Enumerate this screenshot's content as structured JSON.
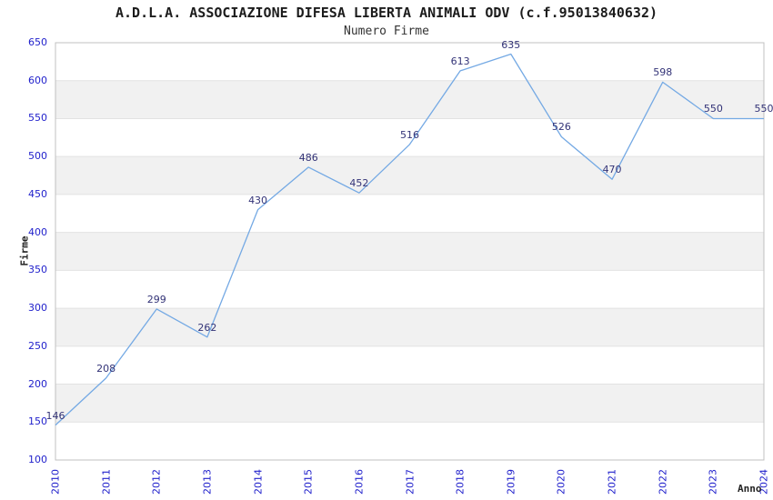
{
  "header": {
    "title": "A.D.L.A. ASSOCIAZIONE DIFESA LIBERTA ANIMALI ODV (c.f.95013840632)",
    "subtitle": "Numero Firme"
  },
  "chart_data": {
    "type": "line",
    "title": "A.D.L.A. ASSOCIAZIONE DIFESA LIBERTA ANIMALI ODV (c.f.95013840632)",
    "subtitle": "Numero Firme",
    "xlabel": "Anno",
    "ylabel": "Firme",
    "x": [
      2010,
      2011,
      2012,
      2013,
      2014,
      2015,
      2016,
      2017,
      2018,
      2019,
      2020,
      2021,
      2022,
      2023,
      2024
    ],
    "values": [
      146,
      208,
      299,
      262,
      430,
      486,
      452,
      516,
      613,
      635,
      526,
      470,
      598,
      550,
      550
    ],
    "ylim": [
      100,
      650
    ],
    "ytick_step": 50,
    "grid": "horizontal alternating bands, gridline every 50",
    "legend": "none",
    "point_labels_shown": true
  },
  "colors": {
    "line": "#74a9e4",
    "tick_label": "#2222cc",
    "data_label": "#333377",
    "band": "#f1f1f1",
    "gridline": "#e2e2e2",
    "border": "#c0c0c0",
    "title": "#1c1c1c"
  }
}
